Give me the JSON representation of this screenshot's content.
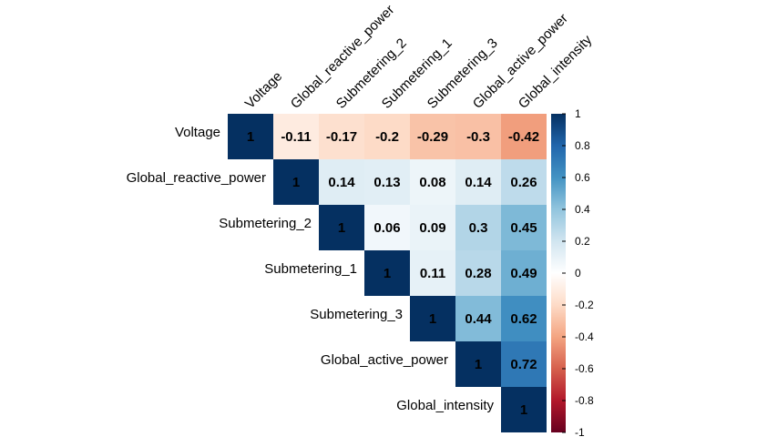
{
  "chart_data": {
    "type": "heatmap",
    "subtype": "correlation-matrix-upper-triangle",
    "variables": [
      "Voltage",
      "Global_reactive_power",
      "Submetering_2",
      "Submetering_1",
      "Submetering_3",
      "Global_active_power",
      "Global_intensity"
    ],
    "matrix": [
      [
        1,
        -0.11,
        -0.17,
        -0.2,
        -0.29,
        -0.3,
        -0.42
      ],
      [
        null,
        1,
        0.14,
        0.13,
        0.08,
        0.14,
        0.26
      ],
      [
        null,
        null,
        1,
        0.06,
        0.09,
        0.3,
        0.45
      ],
      [
        null,
        null,
        null,
        1,
        0.11,
        0.28,
        0.49
      ],
      [
        null,
        null,
        null,
        null,
        1,
        0.44,
        0.62
      ],
      [
        null,
        null,
        null,
        null,
        null,
        1,
        0.72
      ],
      [
        null,
        null,
        null,
        null,
        null,
        null,
        1
      ]
    ],
    "cell_labels": [
      [
        "1",
        "-0.11",
        "-0.17",
        "-0.2",
        "-0.29",
        "-0.3",
        "-0.42"
      ],
      [
        null,
        "1",
        "0.14",
        "0.13",
        "0.08",
        "0.14",
        "0.26"
      ],
      [
        null,
        null,
        "1",
        "0.06",
        "0.09",
        "0.3",
        "0.45"
      ],
      [
        null,
        null,
        null,
        "1",
        "0.11",
        "0.28",
        "0.49"
      ],
      [
        null,
        null,
        null,
        null,
        "1",
        "0.44",
        "0.62"
      ],
      [
        null,
        null,
        null,
        null,
        null,
        "1",
        "0.72"
      ],
      [
        null,
        null,
        null,
        null,
        null,
        null,
        "1"
      ]
    ],
    "colorbar": {
      "range": [
        -1,
        1
      ],
      "ticks": [
        "1",
        "0.8",
        "0.6",
        "0.4",
        "0.2",
        "0",
        "-0.2",
        "-0.4",
        "-0.6",
        "-0.8",
        "-1"
      ],
      "placement": "right",
      "palette": [
        "#67001F",
        "#B2182B",
        "#D6604D",
        "#F4A582",
        "#FDDBC7",
        "#FFFFFF",
        "#D1E5F0",
        "#92C5DE",
        "#4393C3",
        "#2166AC",
        "#053061"
      ]
    },
    "column_label_rotation": "45deg",
    "grid": false
  }
}
